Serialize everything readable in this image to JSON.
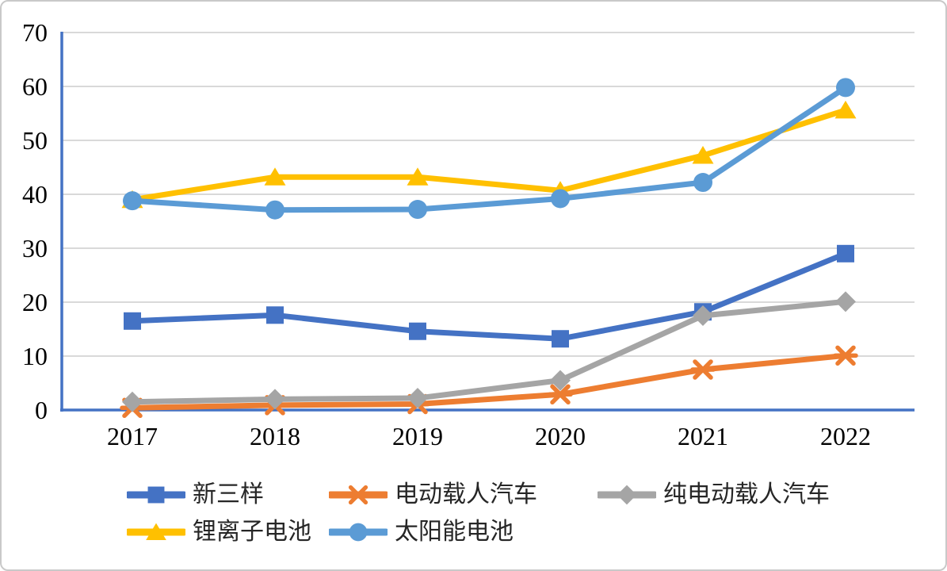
{
  "chart_data": {
    "type": "line",
    "title": "",
    "xlabel": "",
    "ylabel": "",
    "categories": [
      "2017",
      "2018",
      "2019",
      "2020",
      "2021",
      "2022"
    ],
    "series": [
      {
        "name": "新三样",
        "color": "#4472C4",
        "marker": "square",
        "values": [
          16.5,
          17.6,
          14.6,
          13.2,
          18.2,
          29.0
        ]
      },
      {
        "name": "电动载人汽车",
        "color": "#ED7D31",
        "marker": "asterisk",
        "values": [
          0.4,
          0.9,
          1.1,
          2.9,
          7.5,
          10.1
        ]
      },
      {
        "name": "纯电动载人汽车",
        "color": "#A5A5A5",
        "marker": "diamond",
        "values": [
          1.5,
          2.0,
          2.2,
          5.5,
          17.5,
          20.1
        ]
      },
      {
        "name": "锂离子电池",
        "color": "#FFC000",
        "marker": "triangle",
        "values": [
          39.0,
          43.2,
          43.2,
          40.7,
          47.2,
          55.6
        ]
      },
      {
        "name": "太阳能电池",
        "color": "#5B9BD5",
        "marker": "circle",
        "values": [
          38.8,
          37.1,
          37.2,
          39.2,
          42.2,
          59.8
        ]
      }
    ],
    "ylim": [
      0,
      70
    ],
    "yticks": [
      0,
      10,
      20,
      30,
      40,
      50,
      60,
      70
    ],
    "grid": true,
    "legend_position": "bottom",
    "axis_color": "#4472C4",
    "gridline_color": "#D9D9D9",
    "tick_label_color": "#000000"
  }
}
